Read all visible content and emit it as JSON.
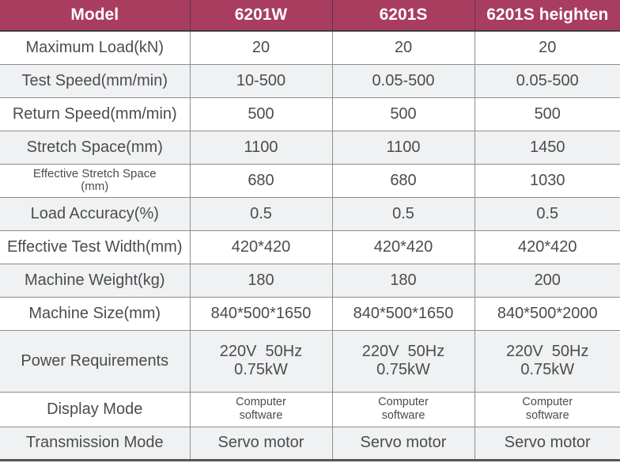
{
  "title": "Machine model specification table",
  "colors": {
    "header_bg": "#A93D5F",
    "header_text": "#FFFFFF",
    "stripe_bg": "#EFF1F3",
    "body_text": "#4C4C4C",
    "grid_line": "#8D8D8D",
    "bottom_border": "#565656"
  },
  "table": {
    "columns": [
      "Model",
      "6201W",
      "6201S",
      "6201S heighten"
    ],
    "rows": [
      {
        "label": "Maximum Load(kN)",
        "values": [
          "20",
          "20",
          "20"
        ]
      },
      {
        "label": "Test Speed(mm/min)",
        "values": [
          "10-500",
          "0.05-500",
          "0.05-500"
        ]
      },
      {
        "label": "Return Speed(mm/min)",
        "values": [
          "500",
          "500",
          "500"
        ]
      },
      {
        "label": "Stretch Space(mm)",
        "values": [
          "1100",
          "1100",
          "1450"
        ]
      },
      {
        "label": "Effective Stretch Space\n(mm)",
        "small_label": true,
        "values": [
          "680",
          "680",
          "1030"
        ]
      },
      {
        "label": "Load Accuracy(%)",
        "values": [
          "0.5",
          "0.5",
          "0.5"
        ]
      },
      {
        "label": "Effective Test Width(mm)",
        "values": [
          "420*420",
          "420*420",
          "420*420"
        ]
      },
      {
        "label": "Machine Weight(kg)",
        "values": [
          "180",
          "180",
          "200"
        ]
      },
      {
        "label": "Machine Size(mm)",
        "values": [
          "840*500*1650",
          "840*500*1650",
          "840*500*2000"
        ]
      },
      {
        "label": "Power Requirements",
        "tall": true,
        "values": [
          "220V  50Hz\n0.75kW",
          "220V  50Hz\n0.75kW",
          "220V  50Hz\n0.75kW"
        ]
      },
      {
        "label": "Display Mode",
        "mid": true,
        "small_values": true,
        "values": [
          "Computer\nsoftware",
          "Computer\nsoftware",
          "Computer\nsoftware"
        ]
      },
      {
        "label": "Transmission Mode",
        "values": [
          "Servo motor",
          "Servo motor",
          "Servo motor"
        ]
      }
    ]
  }
}
